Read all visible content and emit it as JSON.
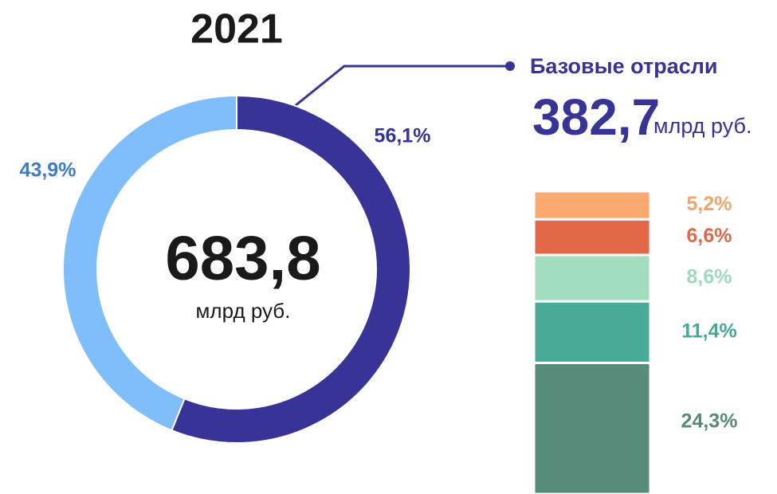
{
  "chart_data": [
    {
      "type": "pie",
      "title": "2021",
      "values": [
        56.1,
        43.9
      ],
      "value_labels": [
        "56,1%",
        "43,9%"
      ],
      "colors": [
        "#383396",
        "#80bdfb"
      ],
      "center_label": "683,8",
      "center_unit": "млрд руб.",
      "callout_title": "Базовые отрасли",
      "callout_value": "382,7",
      "callout_unit": "млрд руб."
    },
    {
      "type": "stacked_bar",
      "values": [
        24.3,
        11.4,
        8.6,
        6.6,
        5.2
      ],
      "value_labels": [
        "24,3%",
        "11,4%",
        "8,6%",
        "6,6%",
        "5,2%"
      ],
      "colors": [
        "#578b7a",
        "#48aa97",
        "#a2ddc0",
        "#e36847",
        "#fba96f"
      ],
      "label_colors": [
        "#578b78",
        "#44a995",
        "#9fd9bb",
        "#e0684a",
        "#f4a46a"
      ]
    }
  ]
}
